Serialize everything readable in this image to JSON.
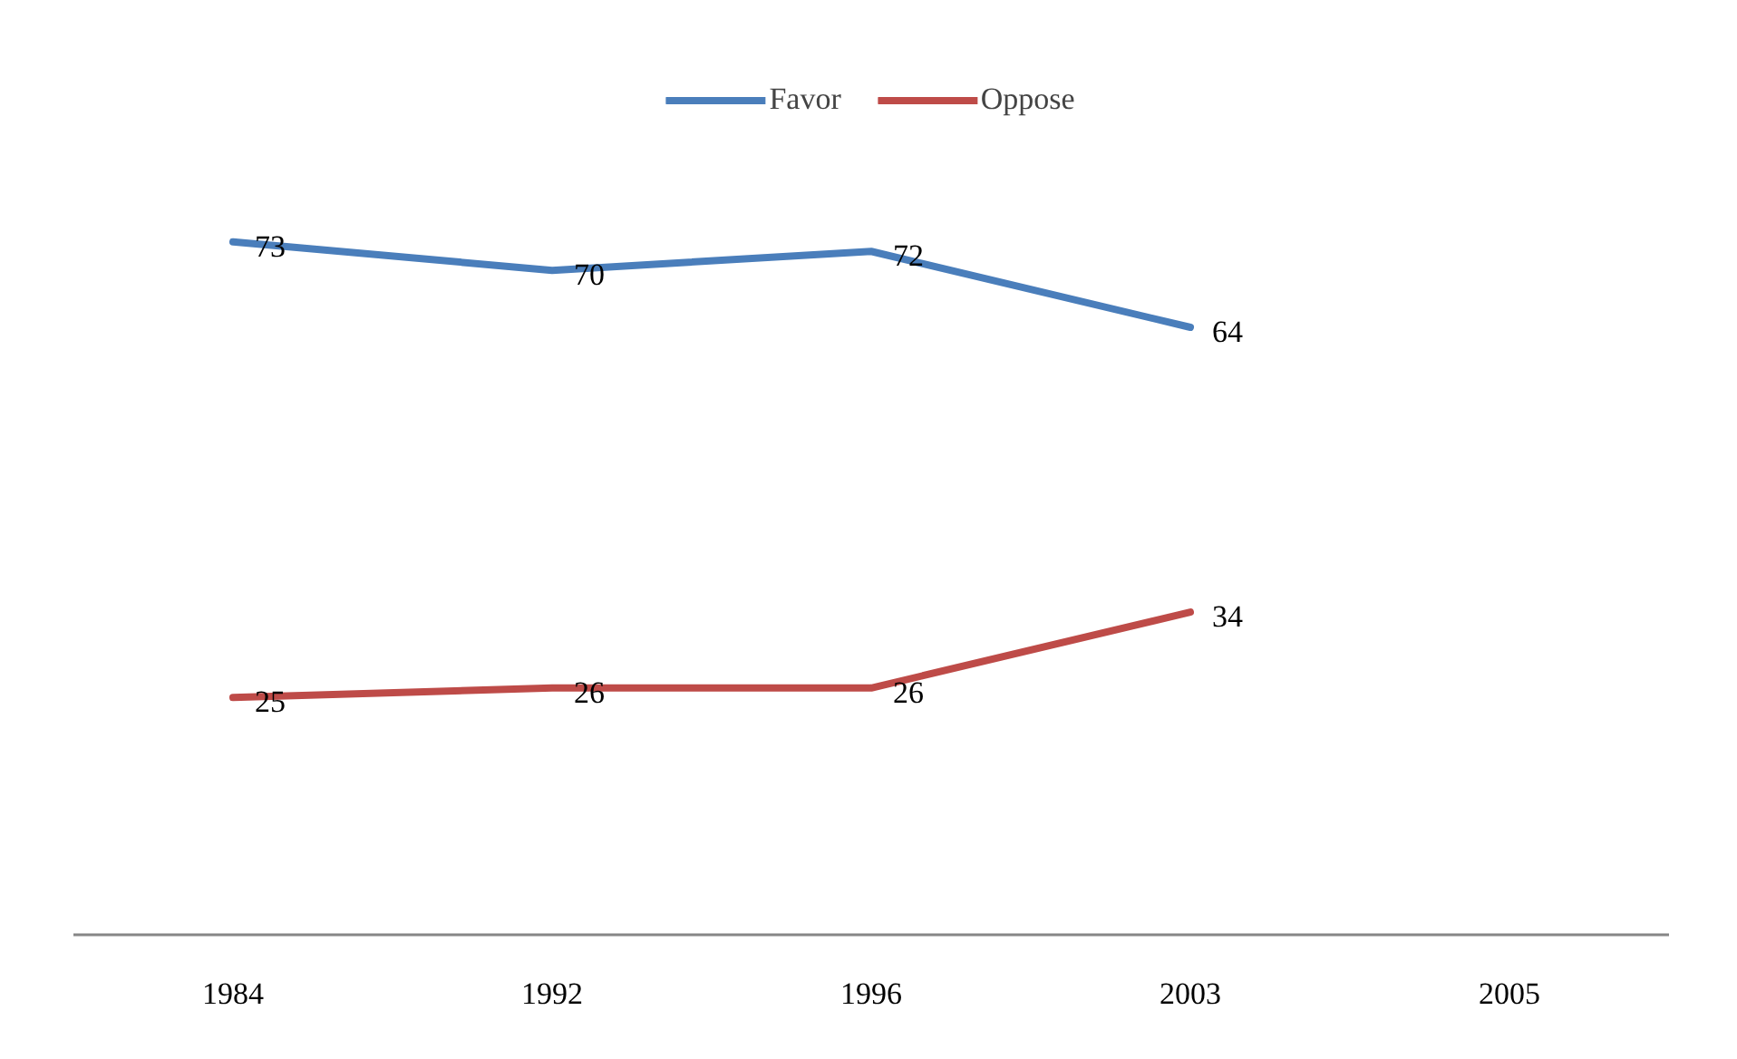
{
  "chart_data": {
    "type": "line",
    "categories": [
      "1984",
      "1992",
      "1996",
      "2003",
      "2005"
    ],
    "series": [
      {
        "name": "Favor",
        "color": "#4a7ebb",
        "values": [
          73,
          70,
          72,
          64,
          null
        ]
      },
      {
        "name": "Oppose",
        "color": "#be4b48",
        "values": [
          25,
          26,
          26,
          34,
          null
        ]
      }
    ],
    "tick_labels": "x",
    "data_labels": true,
    "legend": "top",
    "grid": false,
    "marker": "none",
    "line_style": "solid"
  }
}
